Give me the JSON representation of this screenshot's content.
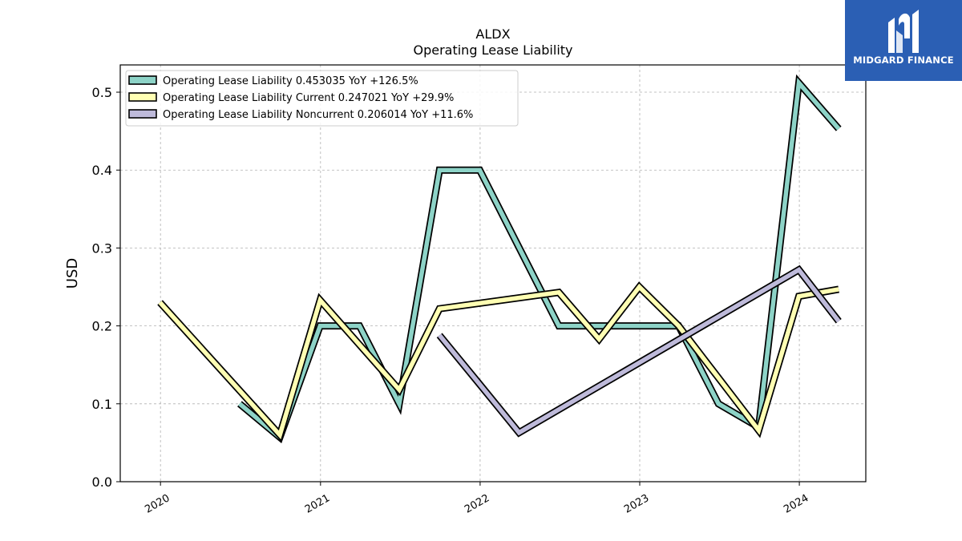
{
  "chart_data": {
    "type": "line",
    "title": "ALDX",
    "subtitle": "Operating Lease Liability",
    "xlabel": "",
    "ylabel": "USD",
    "xlim": [
      "2019-10-01",
      "2024-06-01"
    ],
    "ylim": [
      0,
      0.535
    ],
    "x_ticks": [
      "2020",
      "2021",
      "2022",
      "2023",
      "2024"
    ],
    "y_ticks": [
      "0.0",
      "0.1",
      "0.2",
      "0.3",
      "0.4",
      "0.5"
    ],
    "grid": true,
    "legend_position": "top-left",
    "series": [
      {
        "name": "Operating Lease Liability  0.453035 YoY +126.5%",
        "color": "#8dd3c7",
        "points": [
          [
            "2020-06-30",
            0.1
          ],
          [
            "2020-09-30",
            0.057
          ],
          [
            "2020-12-31",
            0.2
          ],
          [
            "2021-03-31",
            0.2
          ],
          [
            "2021-06-30",
            0.1
          ],
          [
            "2021-09-30",
            0.4
          ],
          [
            "2021-12-31",
            0.4
          ],
          [
            "2022-06-30",
            0.2
          ],
          [
            "2022-09-30",
            0.2
          ],
          [
            "2022-12-31",
            0.2
          ],
          [
            "2023-03-31",
            0.2
          ],
          [
            "2023-06-30",
            0.1
          ],
          [
            "2023-09-30",
            0.07
          ],
          [
            "2023-12-31",
            0.512
          ],
          [
            "2024-03-31",
            0.453
          ]
        ]
      },
      {
        "name": "Operating Lease Liability Current  0.247021 YoY +29.9%",
        "color": "#ffffb3",
        "points": [
          [
            "2019-12-31",
            0.23
          ],
          [
            "2020-09-30",
            0.06
          ],
          [
            "2020-12-31",
            0.233
          ],
          [
            "2021-06-30",
            0.118
          ],
          [
            "2021-09-30",
            0.222
          ],
          [
            "2022-06-30",
            0.243
          ],
          [
            "2022-09-30",
            0.183
          ],
          [
            "2022-12-31",
            0.25
          ],
          [
            "2023-03-31",
            0.2
          ],
          [
            "2023-09-30",
            0.066
          ],
          [
            "2023-12-31",
            0.238
          ],
          [
            "2024-03-31",
            0.247
          ]
        ]
      },
      {
        "name": "Operating Lease Liability Noncurrent  0.206014 YoY +11.6%",
        "color": "#bebada",
        "points": [
          [
            "2021-09-30",
            0.188
          ],
          [
            "2021-12-31",
            0.125
          ],
          [
            "2022-03-31",
            0.063
          ],
          [
            "2023-12-31",
            0.272
          ],
          [
            "2024-03-31",
            0.206
          ]
        ]
      }
    ]
  },
  "logo": {
    "text": "MIDGARD FINANCE",
    "background": "#2b5fb4"
  }
}
